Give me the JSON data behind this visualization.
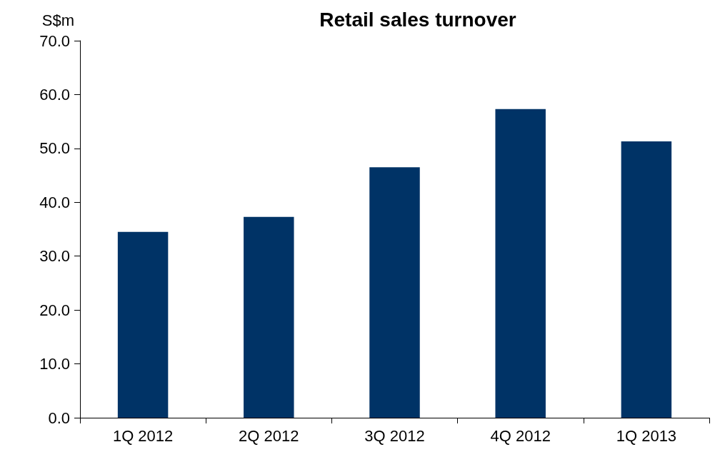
{
  "chart_data": {
    "type": "bar",
    "title": "Retail sales turnover",
    "ylabel": "S$m",
    "categories": [
      "1Q 2012",
      "2Q 2012",
      "3Q 2012",
      "4Q 2012",
      "1Q 2013"
    ],
    "values": [
      34.5,
      37.3,
      46.5,
      57.3,
      51.3
    ],
    "color": "#003366",
    "ylim": [
      0,
      70
    ],
    "yticks": [
      {
        "value": 0,
        "label": "0.0"
      },
      {
        "value": 10,
        "label": "10.0"
      },
      {
        "value": 20,
        "label": "20.0"
      },
      {
        "value": 30,
        "label": "30.0"
      },
      {
        "value": 40,
        "label": "40.0"
      },
      {
        "value": 50,
        "label": "50.0"
      },
      {
        "value": 60,
        "label": "60.0"
      },
      {
        "value": 70,
        "label": "70.0"
      }
    ]
  }
}
